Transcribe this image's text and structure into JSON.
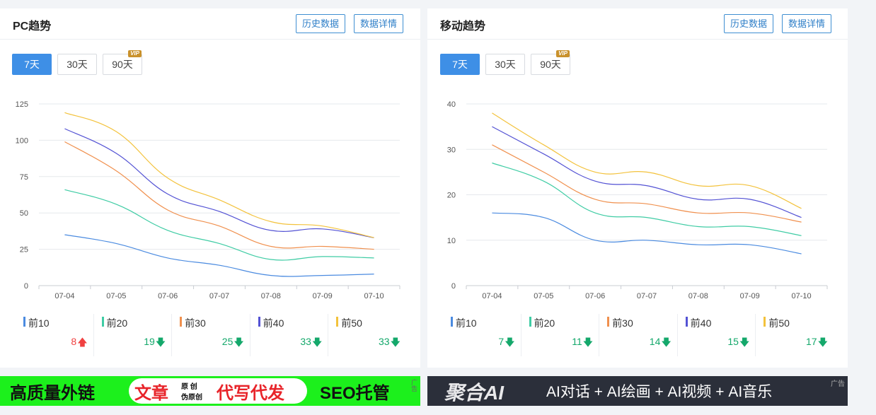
{
  "pc": {
    "title": "PC趋势",
    "history_btn": "历史数据",
    "detail_btn": "数据详情",
    "ranges": [
      "7天",
      "30天",
      "90天"
    ],
    "active_range": "7天",
    "vip_badge": "VIP",
    "stats": [
      {
        "label": "前10",
        "value": "8",
        "trend": "up",
        "color": "#4b8be0"
      },
      {
        "label": "前20",
        "value": "19",
        "trend": "down",
        "color": "#3fcca4"
      },
      {
        "label": "前30",
        "value": "25",
        "trend": "down",
        "color": "#f0904e"
      },
      {
        "label": "前40",
        "value": "33",
        "trend": "down",
        "color": "#5352d4"
      },
      {
        "label": "前50",
        "value": "33",
        "trend": "down",
        "color": "#f3c23c"
      }
    ]
  },
  "mobile": {
    "title": "移动趋势",
    "history_btn": "历史数据",
    "detail_btn": "数据详情",
    "ranges": [
      "7天",
      "30天",
      "90天"
    ],
    "active_range": "7天",
    "vip_badge": "VIP",
    "stats": [
      {
        "label": "前10",
        "value": "7",
        "trend": "down",
        "color": "#4b8be0"
      },
      {
        "label": "前20",
        "value": "11",
        "trend": "down",
        "color": "#3fcca4"
      },
      {
        "label": "前30",
        "value": "14",
        "trend": "down",
        "color": "#f0904e"
      },
      {
        "label": "前40",
        "value": "15",
        "trend": "down",
        "color": "#5352d4"
      },
      {
        "label": "前50",
        "value": "17",
        "trend": "down",
        "color": "#f3c23c"
      }
    ]
  },
  "chart_data": [
    {
      "type": "line",
      "categories": [
        "07-04",
        "07-05",
        "07-06",
        "07-07",
        "07-08",
        "07-09",
        "07-10"
      ],
      "ylim": [
        0,
        125
      ],
      "yticks": [
        0,
        25,
        50,
        75,
        100,
        125
      ],
      "grid": true,
      "series": [
        {
          "name": "前10",
          "color": "#4b8be0",
          "values": [
            35,
            29,
            19,
            14,
            7,
            7,
            8
          ]
        },
        {
          "name": "前20",
          "color": "#3fcca4",
          "values": [
            66,
            56,
            38,
            29,
            18,
            20,
            19
          ]
        },
        {
          "name": "前30",
          "color": "#f0904e",
          "values": [
            99,
            79,
            52,
            41,
            27,
            27,
            25
          ]
        },
        {
          "name": "前40",
          "color": "#5352d4",
          "values": [
            108,
            91,
            63,
            51,
            38,
            39,
            33
          ]
        },
        {
          "name": "前50",
          "color": "#f3c23c",
          "values": [
            119,
            106,
            74,
            59,
            44,
            41,
            33
          ]
        }
      ]
    },
    {
      "type": "line",
      "categories": [
        "07-04",
        "07-05",
        "07-06",
        "07-07",
        "07-08",
        "07-09",
        "07-10"
      ],
      "ylim": [
        0,
        40
      ],
      "yticks": [
        0,
        10,
        20,
        30,
        40
      ],
      "grid": true,
      "series": [
        {
          "name": "前10",
          "color": "#4b8be0",
          "values": [
            16,
            15,
            10,
            10,
            9,
            9,
            7
          ]
        },
        {
          "name": "前20",
          "color": "#3fcca4",
          "values": [
            27,
            23,
            16,
            15,
            13,
            13,
            11
          ]
        },
        {
          "name": "前30",
          "color": "#f0904e",
          "values": [
            31,
            25,
            19,
            18,
            16,
            16,
            14
          ]
        },
        {
          "name": "前40",
          "color": "#5352d4",
          "values": [
            35,
            29,
            23,
            22,
            19,
            19,
            15
          ]
        },
        {
          "name": "前50",
          "color": "#f3c23c",
          "values": [
            38,
            31,
            25,
            25,
            22,
            22,
            17
          ]
        }
      ]
    }
  ],
  "ads": {
    "left": {
      "part1": "高质量外链",
      "part2": "文章",
      "part3a": "原 创",
      "part3b": "伪原创",
      "part4": "代写代发",
      "part5": "SEO托管",
      "mark": "广告"
    },
    "right": {
      "brand": "聚合AI",
      "tagline": "AI对话 + AI绘画 + AI视频 + AI音乐",
      "mark": "广告"
    }
  },
  "colors": {
    "accent": "#3e8fe6",
    "up": "#f04141",
    "down": "#14a86b",
    "ad_green": "#1cf01c",
    "ad_red": "#e8242a"
  }
}
